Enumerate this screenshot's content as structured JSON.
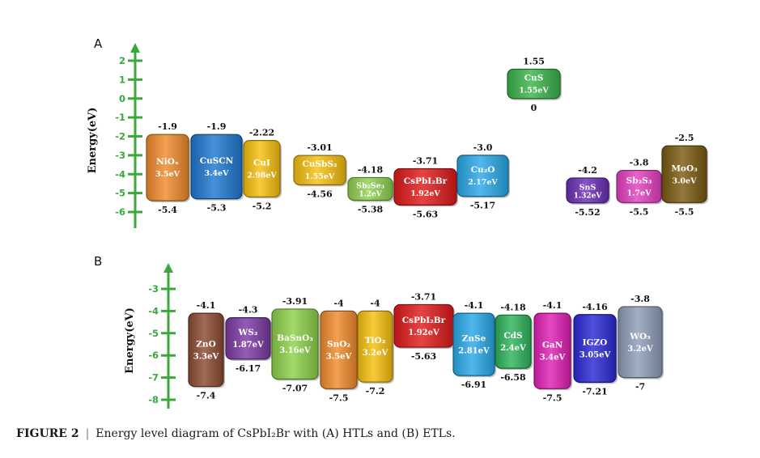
{
  "chart_data": [
    {
      "type": "energy-level-diagram",
      "panel_label": "A",
      "ylabel": "Energy(eV)",
      "yticks": [
        2,
        1,
        0,
        -1,
        -2,
        -3,
        -4,
        -5,
        -6
      ],
      "ylim": [
        -6.3,
        2.7
      ],
      "materials": [
        {
          "label": "NiOₓ",
          "gap": "3.5eV",
          "cb": -1.9,
          "vb": -5.4,
          "cb_text": "-1.9",
          "vb_text": "-5.4",
          "color": "#f08b2c"
        },
        {
          "label": "CuSCN",
          "gap": "3.4eV",
          "cb": -1.9,
          "vb": -5.3,
          "cb_text": "-1.9",
          "vb_text": "-5.3",
          "color": "#1f78d1"
        },
        {
          "label": "CuI",
          "gap": "2.98eV",
          "cb": -2.22,
          "vb": -5.2,
          "cb_text": "-2.22",
          "vb_text": "-5.2",
          "color": "#f6bf0f"
        },
        {
          "label": "CuSbS₂",
          "gap": "1.55eV",
          "cb": -3.01,
          "vb": -4.56,
          "cb_text": "-3.01",
          "vb_text": "-4.56",
          "color": "#f6bf0f"
        },
        {
          "label": "Sb₂Se₃",
          "gap": "1.2eV",
          "cb": -4.18,
          "vb": -5.38,
          "cb_text": "-4.18",
          "vb_text": "-5.38",
          "color": "#8fd14f"
        },
        {
          "label": "CsPbI₂Br",
          "gap": "1.92eV",
          "cb": -3.71,
          "vb": -5.63,
          "cb_text": "-3.71",
          "vb_text": "-5.63",
          "color": "#e01b1b"
        },
        {
          "label": "Cu₂O",
          "gap": "2.17eV",
          "cb": -3.0,
          "vb": -5.17,
          "cb_text": "-3.0",
          "vb_text": "-5.17",
          "color": "#29a9e8"
        },
        {
          "label": "CuS",
          "gap": "1.55eV",
          "cb": 1.55,
          "vb": 0,
          "cb_text": "1.55",
          "vb_text": "0",
          "color": "#3cb44b"
        },
        {
          "label": "SnS",
          "gap": "1.32eV",
          "cb": -4.2,
          "vb": -5.52,
          "cb_text": "-4.2",
          "vb_text": "-5.52",
          "color": "#6a2fb3"
        },
        {
          "label": "Sb₂S₃",
          "gap": "1.7eV",
          "cb": -3.8,
          "vb": -5.5,
          "cb_text": "-3.8",
          "vb_text": "-5.5",
          "color": "#e33fbf"
        },
        {
          "label": "MoO₃",
          "gap": "3.0eV",
          "cb": -2.5,
          "vb": -5.5,
          "cb_text": "-2.5",
          "vb_text": "-5.5",
          "color": "#7a5a10"
        }
      ]
    },
    {
      "type": "energy-level-diagram",
      "panel_label": "B",
      "ylabel": "Energy(eV)",
      "yticks": [
        -3,
        -4,
        -5,
        -6,
        -7,
        -8
      ],
      "ylim": [
        -8.2,
        -2.75
      ],
      "materials": [
        {
          "label": "ZnO",
          "gap": "3.3eV",
          "cb": -4.1,
          "vb": -7.4,
          "cb_text": "-4.1",
          "vb_text": "-7.4",
          "color": "#8b4a32"
        },
        {
          "label": "WS₂",
          "gap": "1.87eV",
          "cb": -4.3,
          "vb": -6.17,
          "cb_text": "-4.3",
          "vb_text": "-6.17",
          "color": "#7b3aa3"
        },
        {
          "label": "BaSnO₃",
          "gap": "3.16eV",
          "cb": -3.91,
          "vb": -7.07,
          "cb_text": "-3.91",
          "vb_text": "-7.07",
          "color": "#8ed14a"
        },
        {
          "label": "SnO₂",
          "gap": "3.5eV",
          "cb": -4.0,
          "vb": -7.5,
          "cb_text": "-4",
          "vb_text": "-7.5",
          "color": "#f08b2c"
        },
        {
          "label": "TiO₂",
          "gap": "3.2eV",
          "cb": -4.0,
          "vb": -7.2,
          "cb_text": "-4",
          "vb_text": "-7.2",
          "color": "#f6bf0f"
        },
        {
          "label": "CsPbI₂Br",
          "gap": "1.92eV",
          "cb": -3.71,
          "vb": -5.63,
          "cb_text": "-3.71",
          "vb_text": "-5.63",
          "color": "#e01b1b"
        },
        {
          "label": "ZnSe",
          "gap": "2.81eV",
          "cb": -4.1,
          "vb": -6.91,
          "cb_text": "-4.1",
          "vb_text": "-6.91",
          "color": "#29a9e8"
        },
        {
          "label": "CdS",
          "gap": "2.4eV",
          "cb": -4.18,
          "vb": -6.58,
          "cb_text": "-4.18",
          "vb_text": "-6.58",
          "color": "#2eb35a"
        },
        {
          "label": "GaN",
          "gap": "3.4eV",
          "cb": -4.1,
          "vb": -7.5,
          "cb_text": "-4.1",
          "vb_text": "-7.5",
          "color": "#e01fb4"
        },
        {
          "label": "IGZO",
          "gap": "3.05eV",
          "cb": -4.16,
          "vb": -7.21,
          "cb_text": "-4.16",
          "vb_text": "-7.21",
          "color": "#2a2ad6"
        },
        {
          "label": "WO₃",
          "gap": "3.2eV",
          "cb": -3.8,
          "vb": -7.0,
          "cb_text": "-3.8",
          "vb_text": "-7",
          "color": "#8d9db8"
        }
      ]
    }
  ],
  "caption": {
    "label": "FIGURE 2",
    "text": "Energy level diagram of CsPbI₂Br with (A) HTLs and (B) ETLs."
  },
  "colors": {
    "axis": "#3aa83a",
    "text": "#111111"
  }
}
